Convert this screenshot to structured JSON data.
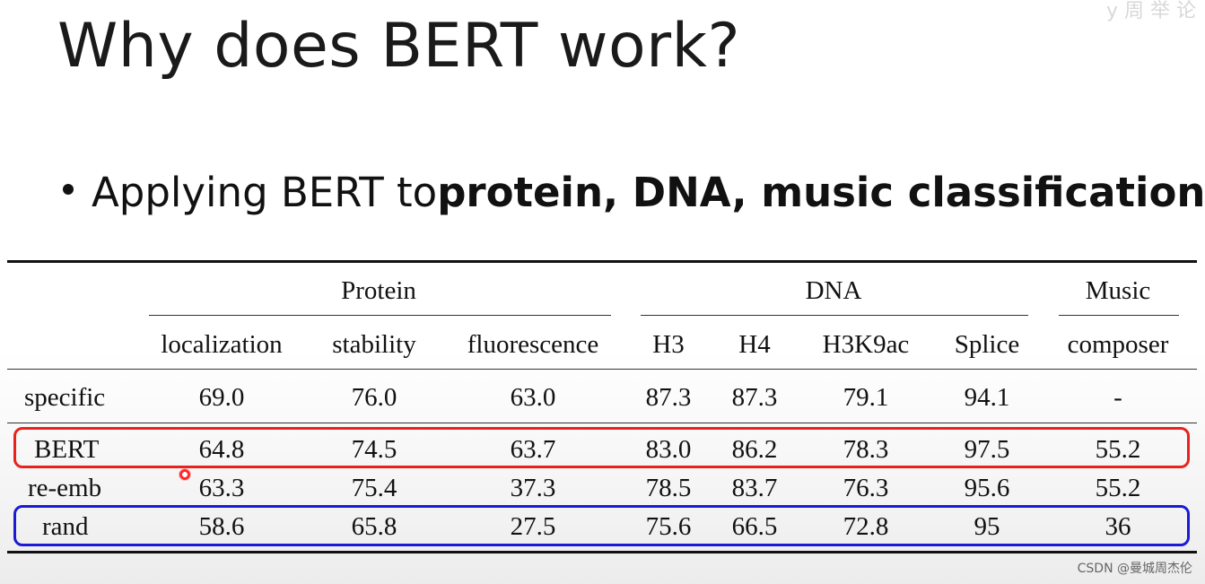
{
  "slide": {
    "title": "Why does BERT work?",
    "bullet": {
      "prefix": "Applying BERT to ",
      "emphasis": "protein, DNA, music classification"
    },
    "top_faint_text": "y 周 举 论",
    "watermark": "CSDN @曼城周杰伦"
  },
  "table": {
    "groups": [
      "Protein",
      "DNA",
      "Music"
    ],
    "columns": [
      "localization",
      "stability",
      "fluorescence",
      "H3",
      "H4",
      "H3K9ac",
      "Splice",
      "composer"
    ],
    "rows": [
      {
        "label": "specific",
        "values": [
          "69.0",
          "76.0",
          "63.0",
          "87.3",
          "87.3",
          "79.1",
          "94.1",
          "-"
        ]
      },
      {
        "label": "BERT",
        "values": [
          "64.8",
          "74.5",
          "63.7",
          "83.0",
          "86.2",
          "78.3",
          "97.5",
          "55.2"
        ]
      },
      {
        "label": "re-emb",
        "values": [
          "63.3",
          "75.4",
          "37.3",
          "78.5",
          "83.7",
          "76.3",
          "95.6",
          "55.2"
        ]
      },
      {
        "label": "rand",
        "values": [
          "58.6",
          "65.8",
          "27.5",
          "75.6",
          "66.5",
          "72.8",
          "95",
          "36"
        ]
      }
    ],
    "highlight_colors": {
      "BERT": "#e8231d",
      "rand": "#1b1bd6"
    }
  }
}
